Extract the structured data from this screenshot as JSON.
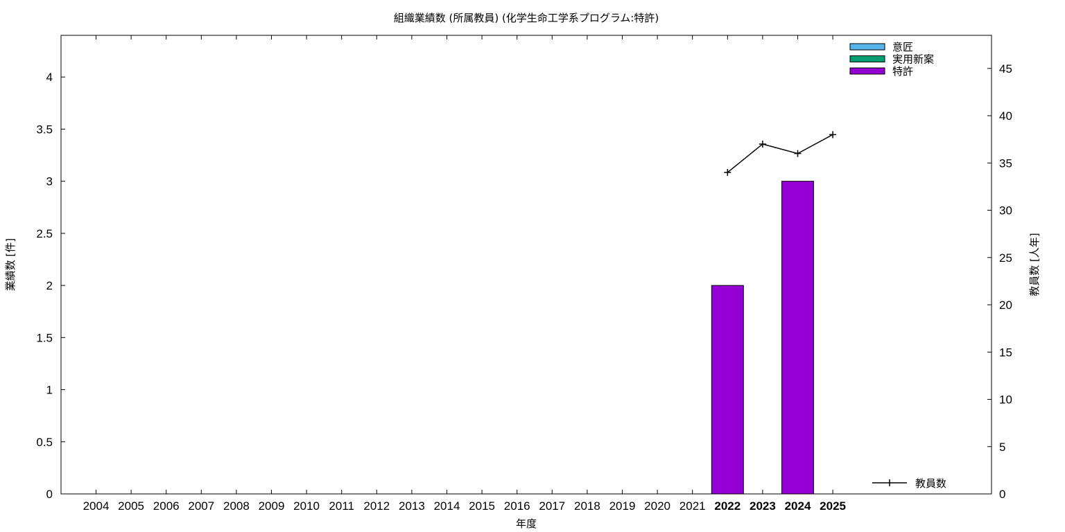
{
  "chart_data": {
    "type": "bar",
    "title": "組織業績数 (所属教員) (化学生命工学系プログラム:特許)",
    "xlabel": "年度",
    "ylabel": "業績数 [件]",
    "y2label": "教員数 [人年]",
    "categories": [
      "2004",
      "2005",
      "2006",
      "2007",
      "2008",
      "2009",
      "2010",
      "2011",
      "2012",
      "2013",
      "2014",
      "2015",
      "2016",
      "2017",
      "2018",
      "2019",
      "2020",
      "2021",
      "2022",
      "2023",
      "2024",
      "2025"
    ],
    "highlight_categories": [
      "2022",
      "2023",
      "2024",
      "2025"
    ],
    "ylim": [
      0,
      4.4
    ],
    "yticks": [
      0,
      0.5,
      1,
      1.5,
      2,
      2.5,
      3,
      3.5,
      4
    ],
    "ytick_labels": [
      "0",
      "0.5",
      "1",
      "1.5",
      "2",
      "2.5",
      "3",
      "3.5",
      "4"
    ],
    "y2lim": [
      0,
      48.5
    ],
    "y2ticks": [
      0,
      5,
      10,
      15,
      20,
      25,
      30,
      35,
      40,
      45
    ],
    "y2tick_labels": [
      "0",
      "5",
      "10",
      "15",
      "20",
      "25",
      "30",
      "35",
      "40",
      "45"
    ],
    "series": [
      {
        "name": "意匠",
        "color": "#56b4e9",
        "values": [
          0,
          0,
          0,
          0,
          0,
          0,
          0,
          0,
          0,
          0,
          0,
          0,
          0,
          0,
          0,
          0,
          0,
          0,
          0,
          0,
          0,
          0
        ]
      },
      {
        "name": "実用新案",
        "color": "#009e73",
        "values": [
          0,
          0,
          0,
          0,
          0,
          0,
          0,
          0,
          0,
          0,
          0,
          0,
          0,
          0,
          0,
          0,
          0,
          0,
          0,
          0,
          0,
          0
        ]
      },
      {
        "name": "特許",
        "color": "#9400d3",
        "values": [
          0,
          0,
          0,
          0,
          0,
          0,
          0,
          0,
          0,
          0,
          0,
          0,
          0,
          0,
          0,
          0,
          0,
          0,
          2,
          0,
          3,
          0
        ]
      }
    ],
    "line_series": {
      "name": "教員数",
      "axis": "y2",
      "color": "#000000",
      "x": [
        "2022",
        "2023",
        "2024",
        "2025"
      ],
      "values": [
        34,
        37,
        36,
        38
      ]
    },
    "legend_position": "top-right",
    "line_legend_position": "bottom-right",
    "grid": false
  }
}
